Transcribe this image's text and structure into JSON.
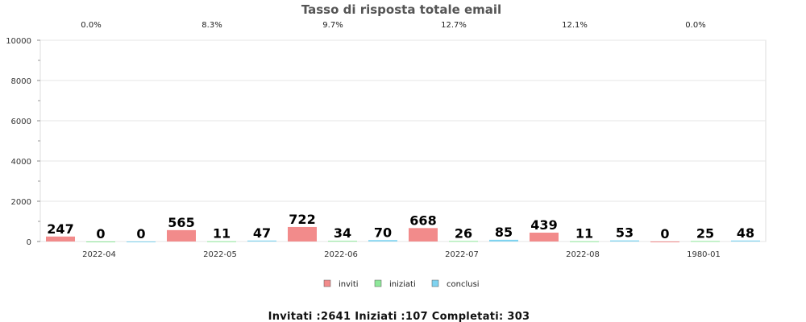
{
  "chart_data": {
    "type": "bar",
    "title": "Tasso di risposta totale email",
    "categories": [
      "2022-04",
      "2022-05",
      "2022-06",
      "2022-07",
      "2022-08",
      "1980-01"
    ],
    "rate_labels": [
      "0.0%",
      "8.3%",
      "9.7%",
      "12.7%",
      "12.1%",
      "0.0%"
    ],
    "series": [
      {
        "name": "inviti",
        "color": "#f28b8b",
        "values": [
          247,
          565,
          722,
          668,
          439,
          0
        ]
      },
      {
        "name": "iniziati",
        "color": "#8ee89a",
        "values": [
          0,
          11,
          34,
          26,
          11,
          25
        ]
      },
      {
        "name": "conclusi",
        "color": "#7fd3f0",
        "values": [
          0,
          47,
          70,
          85,
          53,
          48
        ]
      }
    ],
    "ylim": [
      0,
      10000
    ],
    "yticks": [
      0,
      2000,
      4000,
      6000,
      8000,
      10000
    ],
    "grid": true,
    "legend_position": "bottom-center",
    "xlabel": "",
    "ylabel": ""
  },
  "summary": "Invitati :2641 Iniziati :107 Completati: 303"
}
